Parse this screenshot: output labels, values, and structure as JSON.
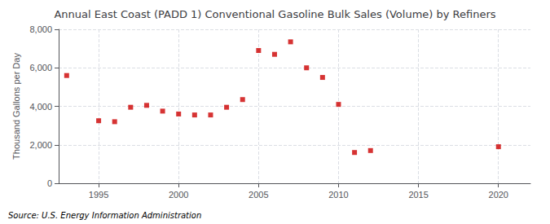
{
  "chart_data": {
    "type": "scatter",
    "title": "Annual East Coast (PADD 1) Conventional Gasoline Bulk Sales (Volume) by Refiners",
    "ylabel": "Thousand Gallons per Day",
    "source": "Source: U.S. Energy Information Administration",
    "x": [
      1993,
      1995,
      1996,
      1997,
      1998,
      1999,
      2000,
      2001,
      2002,
      2003,
      2004,
      2005,
      2006,
      2007,
      2008,
      2009,
      2010,
      2011,
      2012,
      2020
    ],
    "values": [
      5600,
      3250,
      3200,
      3950,
      4050,
      3750,
      3600,
      3550,
      3550,
      3950,
      4350,
      6900,
      6700,
      7350,
      6000,
      5500,
      4100,
      1600,
      1700,
      1900
    ],
    "color": "#CC0000",
    "marker": "square",
    "xlim": [
      1992.5,
      2022
    ],
    "xticks": [
      1995,
      2000,
      2005,
      2010,
      2015,
      2020
    ],
    "ylim": [
      0,
      8000
    ],
    "yticks": [
      0,
      {
        "value": 2000,
        "label": "2,000"
      },
      {
        "value": 4000,
        "label": "4,000"
      },
      {
        "value": 6000,
        "label": "6,000"
      },
      {
        "value": 8000,
        "label": "8,000"
      }
    ],
    "grid": true
  }
}
